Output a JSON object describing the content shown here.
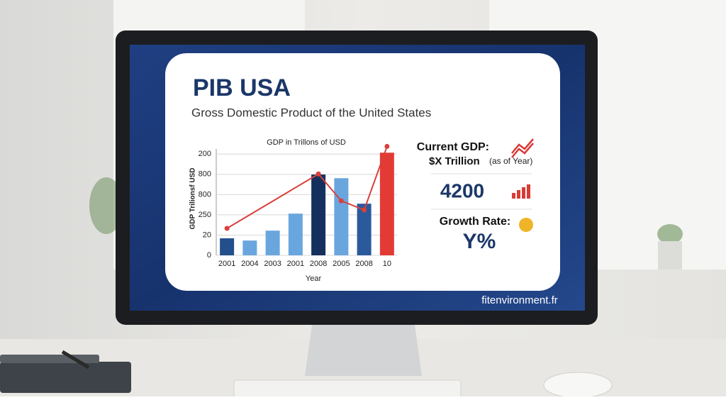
{
  "header": {
    "title": "PIB USA",
    "subtitle": "Gross Domestic Product of the United States"
  },
  "chart_data": {
    "type": "bar",
    "title": "GDP in Trillons of USD",
    "x_label": "Year",
    "y_label": "GDP Trilionsf USD",
    "categories": [
      "2001",
      "2004",
      "2003",
      "2001",
      "2008",
      "2005",
      "2008",
      "10"
    ],
    "values": [
      0.84,
      0.73,
      1.22,
      2.06,
      3.99,
      3.81,
      2.55,
      5.07
    ],
    "colors": [
      "#234f8c",
      "#6aa6de",
      "#6aa6de",
      "#6aa6de",
      "#16305e",
      "#6aa6de",
      "#2a5a9c",
      "#e23b36"
    ],
    "line": {
      "color": "#d9403a",
      "x": [
        0,
        4,
        5,
        6,
        7
      ],
      "values": [
        1.33,
        4.02,
        2.69,
        2.24,
        5.38
      ]
    },
    "ylim": [
      0,
      5.5
    ],
    "yticks": [
      {
        "value": 0,
        "label": "0"
      },
      {
        "value": 1,
        "label": "20"
      },
      {
        "value": 2,
        "label": "250"
      },
      {
        "value": 3,
        "label": "800"
      },
      {
        "value": 4,
        "label": "800"
      },
      {
        "value": 5,
        "label": "200"
      }
    ],
    "grid": true
  },
  "panel": {
    "current_label": "Current GDP:",
    "current_value": "$X Trillion",
    "current_note": "(as of Year)",
    "figure": "4200",
    "growth_label": "Growth Rate:",
    "growth_value": "Y%"
  },
  "footer": "fitenvironment.fr"
}
